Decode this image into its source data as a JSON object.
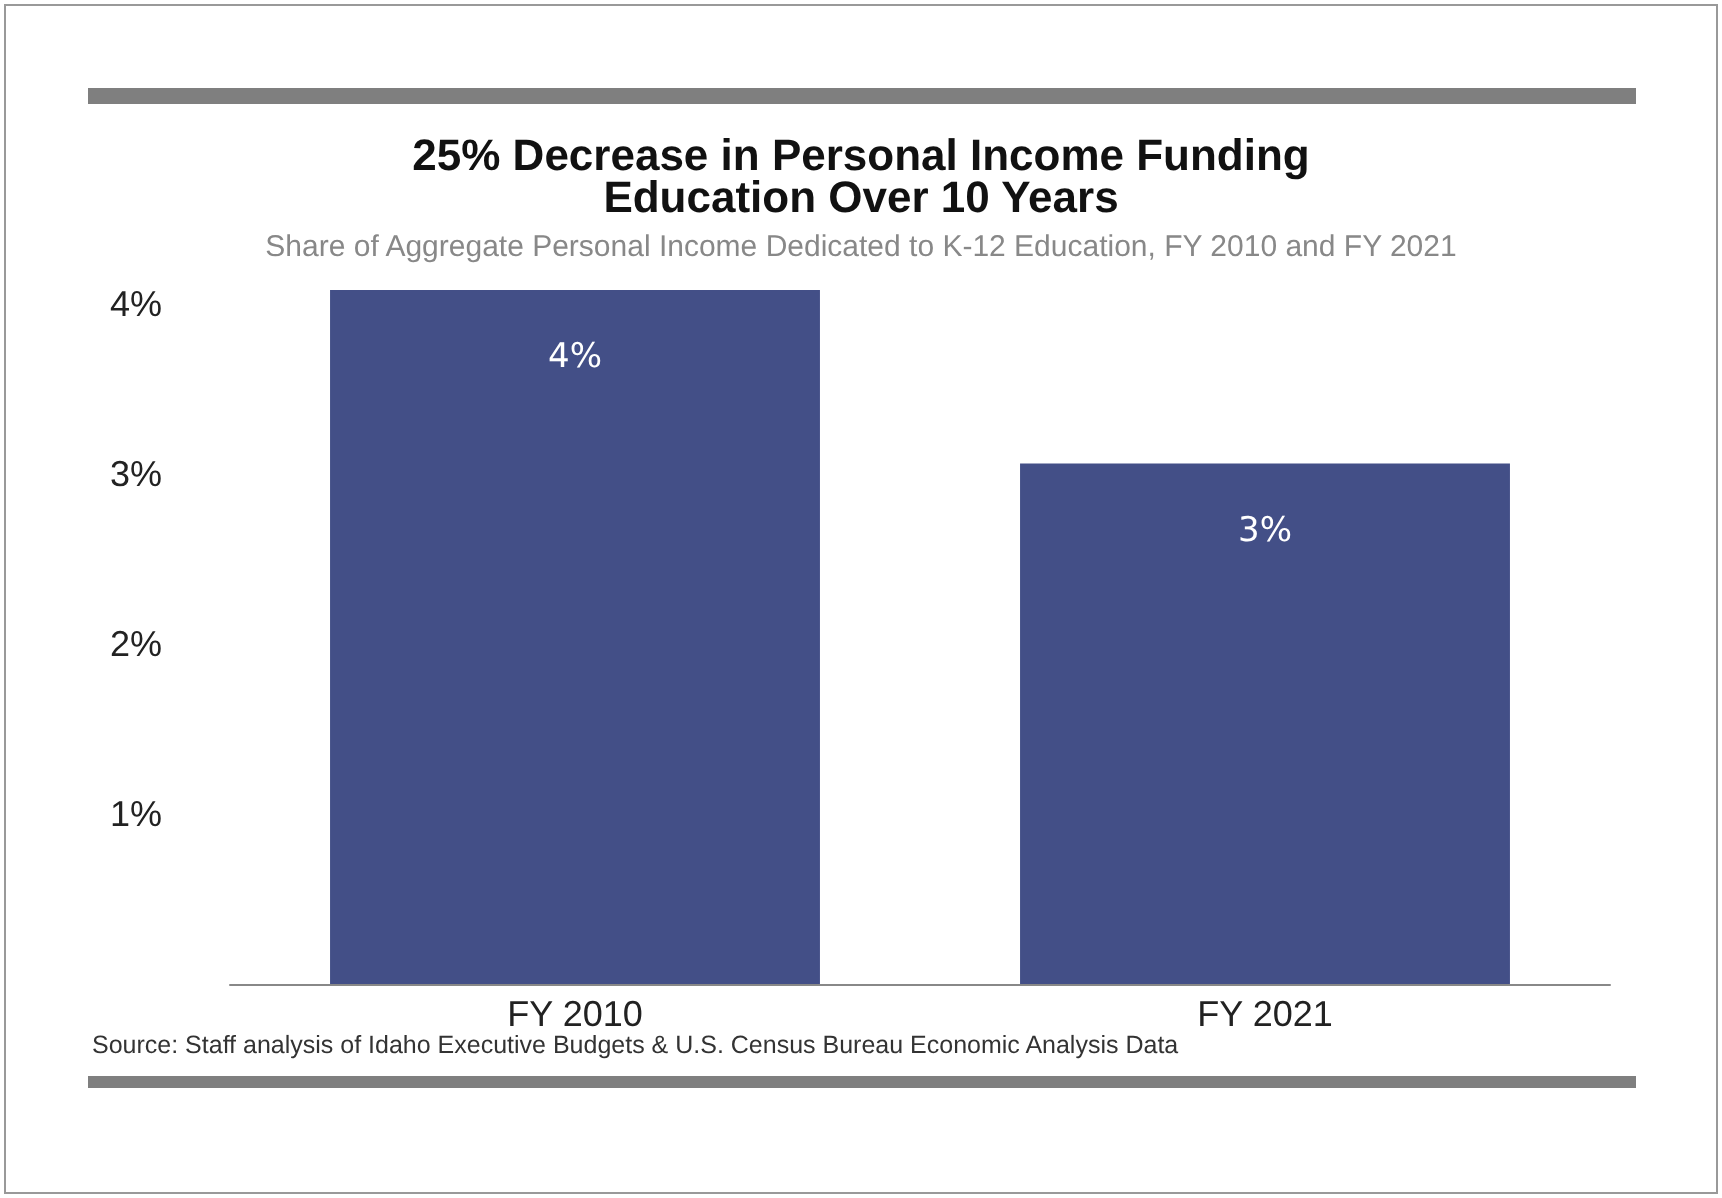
{
  "chart_data": {
    "type": "bar",
    "title": "25% Decrease in Personal Income Funding\nEducation Over 10 Years",
    "subtitle": "Share of Aggregate Personal Income Dedicated to K-12 Education, FY 2010 and FY 2021",
    "categories": [
      "FY 2010",
      "FY 2021"
    ],
    "values": [
      4.08,
      3.06
    ],
    "value_labels": [
      "4%",
      "3%"
    ],
    "color": "#434f87",
    "ylim": [
      0,
      4.08
    ],
    "yticks": [
      {
        "value": 1,
        "label": "1%"
      },
      {
        "value": 2,
        "label": "2%"
      },
      {
        "value": 3,
        "label": "3%"
      },
      {
        "value": 4,
        "label": "4%"
      }
    ],
    "grid": false,
    "annotations": [
      "Source: Staff analysis of Idaho Executive Budgets & U.S. Census Bureau Economic Analysis Data"
    ]
  }
}
